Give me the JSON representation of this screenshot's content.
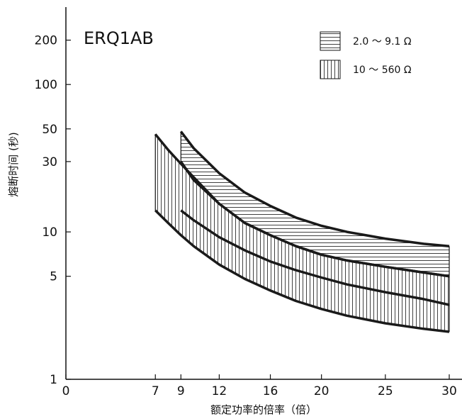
{
  "chart_data": {
    "type": "line",
    "title": "ERQ1AB",
    "xlabel": "额定功率的倍率（倍）",
    "ylabel": "熔断时间 (秒)",
    "xlim": [
      0,
      30
    ],
    "ylim": [
      1,
      300
    ],
    "y_scale": "log",
    "x_ticks": [
      0,
      7,
      9,
      12,
      16,
      20,
      25,
      30
    ],
    "y_ticks": [
      1,
      5,
      10,
      30,
      50,
      100,
      200
    ],
    "grid": false,
    "legend_position": "top-right",
    "series": [
      {
        "name": "2.0 ～ 9.1 Ω",
        "fill": "horizontal-hatch",
        "upper": {
          "x": [
            9,
            10,
            12,
            14,
            16,
            18,
            20,
            22,
            25,
            28,
            30
          ],
          "y": [
            48,
            37,
            25,
            18.5,
            15,
            12.5,
            11,
            10,
            9,
            8.3,
            8
          ]
        },
        "lower": {
          "x": [
            9,
            10,
            12,
            14,
            16,
            18,
            20,
            22,
            25,
            28,
            30
          ],
          "y": [
            30,
            22.5,
            15.5,
            11.5,
            9.5,
            8,
            7,
            6.4,
            5.8,
            5.3,
            5
          ]
        }
      },
      {
        "name": "10 ～ 560 Ω",
        "fill": "vertical-hatch",
        "upper": {
          "x": [
            7,
            8,
            9,
            10,
            12,
            14,
            16,
            18,
            20,
            22,
            25,
            28,
            30
          ],
          "y": [
            46,
            36,
            29,
            23.5,
            15.5,
            11.5,
            9.5,
            8,
            7,
            6.4,
            5.8,
            5.3,
            5
          ]
        },
        "lower": {
          "x": [
            7,
            8,
            9,
            10,
            12,
            14,
            16,
            18,
            20,
            22,
            25,
            28,
            30
          ],
          "y": [
            14,
            11.5,
            9.5,
            8,
            6,
            4.8,
            4,
            3.4,
            3,
            2.7,
            2.4,
            2.2,
            2.1
          ]
        }
      },
      {
        "name": "",
        "line_only": true,
        "x": [
          9,
          10,
          12,
          14,
          16,
          18,
          20,
          22,
          25,
          28,
          30
        ],
        "y": [
          14,
          12,
          9.2,
          7.5,
          6.3,
          5.5,
          4.9,
          4.4,
          3.9,
          3.5,
          3.2
        ]
      }
    ]
  }
}
